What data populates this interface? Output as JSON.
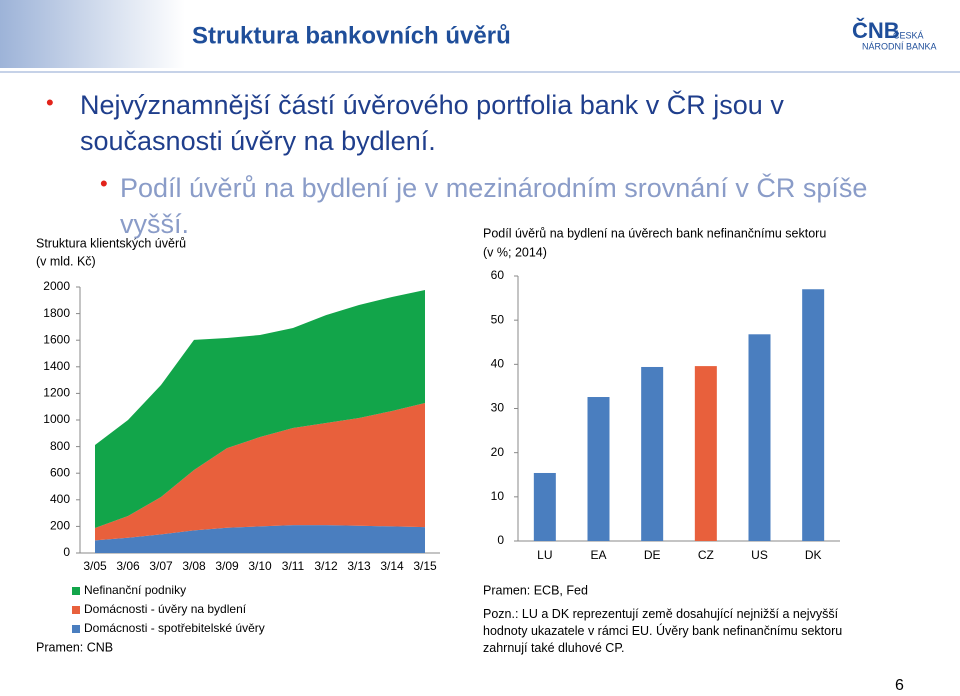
{
  "header": {
    "title": "Struktura bankovních úvěrů",
    "logo": "ČNB",
    "logo_line1": "ČESKÁ",
    "logo_line2": "NÁRODNÍ BANKA"
  },
  "bullets": [
    "Nejvýznamnější částí úvěrového portfolia bank v ČR jsou v současnosti úvěry na bydlení.",
    "Podíl úvěrů na bydlení je v mezinárodním srovnání v ČR spíše vyšší."
  ],
  "page_number": "6",
  "chart_data": [
    {
      "type": "stacked-area",
      "title": "Struktura klientských úvěrů",
      "subtitle": "(v mld. Kč)",
      "categories": [
        "3/05",
        "3/06",
        "3/07",
        "3/08",
        "3/09",
        "3/10",
        "3/11",
        "3/12",
        "3/13",
        "3/14",
        "3/15"
      ],
      "series": [
        {
          "name": "Domácnosti - spotřebitelské úvěry",
          "color": "#4a7ebf",
          "values": [
            95,
            115,
            140,
            170,
            190,
            200,
            210,
            210,
            205,
            200,
            195
          ]
        },
        {
          "name": "Domácnosti - úvěry na bydlení",
          "color": "#e8603c",
          "values": [
            93,
            163,
            281,
            454,
            599,
            672,
            730,
            767,
            810,
            868,
            933
          ]
        },
        {
          "name": "Nefinanční podniky",
          "color": "#12a54a",
          "values": [
            624,
            722,
            842,
            978,
            828,
            767,
            752,
            812,
            850,
            857,
            849
          ]
        }
      ],
      "ylim": [
        0,
        2000
      ],
      "yticks": [
        0,
        200,
        400,
        600,
        800,
        1000,
        1200,
        1400,
        1600,
        1800,
        2000
      ],
      "legend": "bottom",
      "source": "Pramen: CNB"
    },
    {
      "type": "bar",
      "title": "Podíl úvěrů na bydlení na úvěrech bank nefinančnímu sektoru",
      "subtitle": "(v %; 2014)",
      "categories": [
        "LU",
        "EA",
        "DE",
        "CZ",
        "US",
        "DK"
      ],
      "values": [
        15.4,
        32.6,
        39.4,
        39.6,
        46.8,
        57
      ],
      "colors": [
        "#4a7ebf",
        "#4a7ebf",
        "#4a7ebf",
        "#e8603c",
        "#4a7ebf",
        "#4a7ebf"
      ],
      "ylim": [
        0,
        60
      ],
      "yticks": [
        0,
        10,
        20,
        30,
        40,
        50,
        60
      ],
      "source": "Pramen: ECB, Fed",
      "note": "Pozn.: LU a DK reprezentují země dosahující nejnižší a nejvyšší hodnoty ukazatele v rámci EU. Úvěry bank nefinančnímu sektoru zahrnují také dluhové CP."
    }
  ]
}
